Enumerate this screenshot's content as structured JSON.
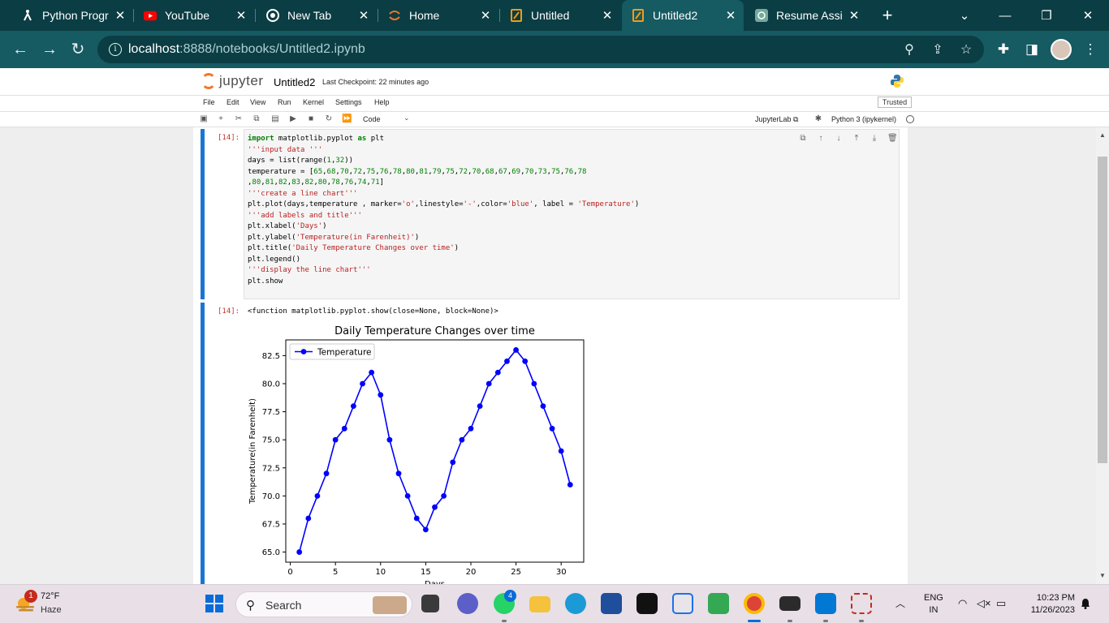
{
  "browser": {
    "tabs": [
      {
        "label": "Python Progr",
        "favicon": "python-icon"
      },
      {
        "label": "YouTube",
        "favicon": "youtube-icon"
      },
      {
        "label": "New Tab",
        "favicon": "chrome-icon"
      },
      {
        "label": "Home",
        "favicon": "jupyter-icon"
      },
      {
        "label": "Untitled",
        "favicon": "notebook-icon"
      },
      {
        "label": "Untitled2",
        "favicon": "notebook-icon"
      },
      {
        "label": "Resume Assi",
        "favicon": "chatgpt-icon"
      }
    ],
    "active_tab_index": 5,
    "url_host": "localhost",
    "url_rest": ":8888/notebooks/Untitled2.ipynb"
  },
  "jupyter": {
    "logo_text": "jupyter",
    "notebook_title": "Untitled2",
    "checkpoint": "Last Checkpoint: 22 minutes ago",
    "menu": [
      "File",
      "Edit",
      "View",
      "Run",
      "Kernel",
      "Settings",
      "Help"
    ],
    "trusted": "Trusted",
    "cell_type": "Code",
    "jupyterlab_link": "JupyterLab",
    "kernel": "Python 3 (ipykernel)"
  },
  "cell": {
    "input_prompt": "[14]:",
    "output_prompt": "[14]:",
    "output_text": "<function matplotlib.pyplot.show(close=None, block=None)>"
  },
  "chart_data": {
    "type": "line",
    "title": "Daily Temperature Changes over time",
    "xlabel": "Days",
    "ylabel": "Temperature(in Farenheit)",
    "x": [
      1,
      2,
      3,
      4,
      5,
      6,
      7,
      8,
      9,
      10,
      11,
      12,
      13,
      14,
      15,
      16,
      17,
      18,
      19,
      20,
      21,
      22,
      23,
      24,
      25,
      26,
      27,
      28,
      29,
      30,
      31
    ],
    "series": [
      {
        "name": "Temperature",
        "color": "#0000ff",
        "marker": "o",
        "values": [
          65,
          68,
          70,
          72,
          75,
          76,
          78,
          80,
          81,
          79,
          75,
          72,
          70,
          68,
          67,
          69,
          70,
          73,
          75,
          76,
          78,
          80,
          81,
          82,
          83,
          82,
          80,
          78,
          76,
          74,
          71
        ]
      }
    ],
    "xticks": [
      "0",
      "5",
      "10",
      "15",
      "20",
      "25",
      "30"
    ],
    "yticks": [
      "65.0",
      "67.5",
      "70.0",
      "72.5",
      "75.0",
      "77.5",
      "80.0",
      "82.5"
    ],
    "xlim": [
      -0.5,
      32.5
    ],
    "ylim": [
      64.1,
      83.9
    ],
    "legend_position": "upper-left",
    "grid": false
  },
  "taskbar": {
    "weather_temp": "72°F",
    "weather_desc": "Haze",
    "weather_badge": "1",
    "search_label": "Search",
    "whatsapp_badge": "4",
    "language_line1": "ENG",
    "language_line2": "IN",
    "time": "10:23 PM",
    "date": "11/26/2023"
  }
}
